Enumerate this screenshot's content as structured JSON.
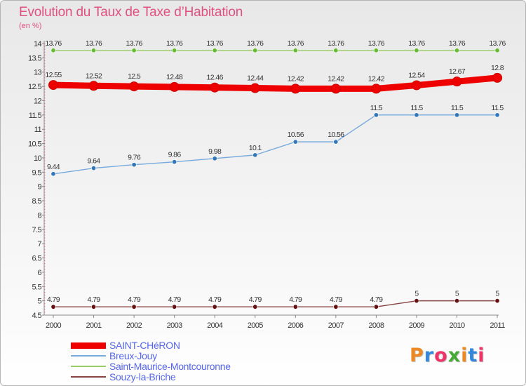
{
  "chart_data": {
    "type": "line",
    "title": "Evolution du Taux de Taxe d’Habitation",
    "subtitle": "(en %)",
    "categories": [
      "2000",
      "2001",
      "2002",
      "2003",
      "2004",
      "2005",
      "2006",
      "2007",
      "2008",
      "2009",
      "2010",
      "2011"
    ],
    "ylim": [
      4.5,
      14
    ],
    "yticks": [
      "4.5",
      "5",
      "5.5",
      "6",
      "6.5",
      "7",
      "7.5",
      "8",
      "8.5",
      "9",
      "9.5",
      "10",
      "10.5",
      "11",
      "11.5",
      "12",
      "12.5",
      "13",
      "13.5",
      "14"
    ],
    "grid": false,
    "legend_position": "bottom-left",
    "series": [
      {
        "name": "Saint-Maurice-Montcouronne",
        "color": "#99cc66",
        "marker": "#66bb33",
        "values": [
          13.76,
          13.76,
          13.76,
          13.76,
          13.76,
          13.76,
          13.76,
          13.76,
          13.76,
          13.76,
          13.76,
          13.76
        ],
        "labels": [
          "13.76",
          "13.76",
          "13.76",
          "13.76",
          "13.76",
          "13.76",
          "13.76",
          "13.76",
          "13.76",
          "13.76",
          "13.76",
          "13.76"
        ]
      },
      {
        "name": "SAINT-CHéRON",
        "color": "#ee0000",
        "marker": "#ee0000",
        "values": [
          12.55,
          12.52,
          12.5,
          12.48,
          12.46,
          12.44,
          12.42,
          12.42,
          12.42,
          12.54,
          12.67,
          12.8
        ],
        "labels": [
          "12.55",
          "12.52",
          "12.5",
          "12.48",
          "12.46",
          "12.44",
          "12.42",
          "12.42",
          "12.42",
          "12.54",
          "12.67",
          "12.8"
        ]
      },
      {
        "name": "Breux-Jouy",
        "color": "#77aadd",
        "marker": "#3377bb",
        "values": [
          9.44,
          9.64,
          9.76,
          9.86,
          9.98,
          10.1,
          10.56,
          10.56,
          11.5,
          11.5,
          11.5,
          11.5
        ],
        "labels": [
          "9.44",
          "9.64",
          "9.76",
          "9.86",
          "9.98",
          "10.1",
          "10.56",
          "10.56",
          "11.5",
          "11.5",
          "11.5",
          "11.5"
        ]
      },
      {
        "name": "Souzy-la-Briche",
        "color": "#884444",
        "marker": "#661111",
        "values": [
          4.79,
          4.79,
          4.79,
          4.79,
          4.79,
          4.79,
          4.79,
          4.79,
          4.79,
          5,
          5,
          5
        ],
        "labels": [
          "4.79",
          "4.79",
          "4.79",
          "4.79",
          "4.79",
          "4.79",
          "4.79",
          "4.79",
          "4.79",
          "5",
          "5",
          "5"
        ]
      }
    ],
    "legend": [
      {
        "name": "SAINT-CHéRON",
        "color": "#ee0000",
        "thick": true
      },
      {
        "name": "Breux-Jouy",
        "color": "#77aadd",
        "thick": false
      },
      {
        "name": "Saint-Maurice-Montcouronne",
        "color": "#99cc66",
        "thick": false
      },
      {
        "name": "Souzy-la-Briche",
        "color": "#884444",
        "thick": false
      }
    ]
  },
  "logo": {
    "text": "Proxiti",
    "colors": [
      "#ee8822",
      "#3388dd",
      "#ee3366",
      "#44aa33",
      "#ee8822",
      "#3388dd",
      "#ee3366"
    ]
  }
}
